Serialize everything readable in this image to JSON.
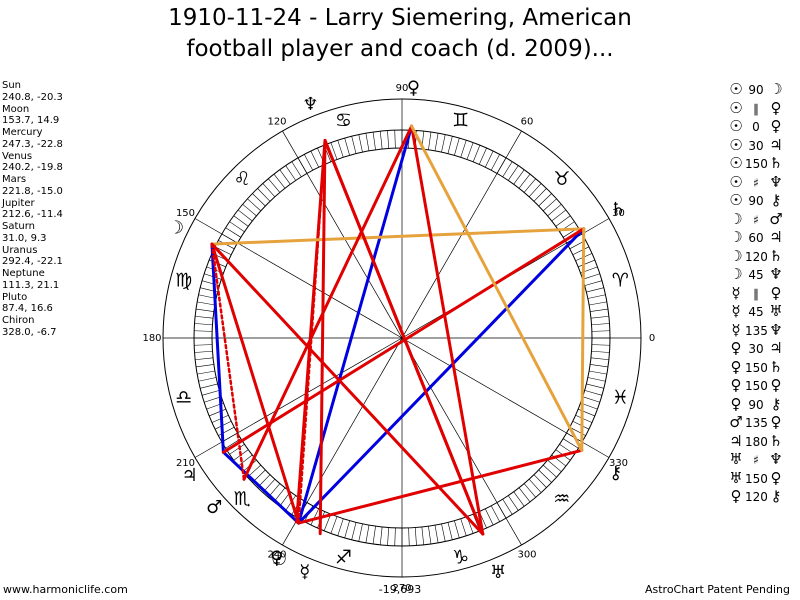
{
  "title_line1": "1910-11-24 - Larry Siemering, American",
  "title_line2": "football player and coach (d. 2009)...",
  "positions": [
    {
      "name": "Sun",
      "value": "240.8, -20.3"
    },
    {
      "name": "Moon",
      "value": "153.7, 14.9"
    },
    {
      "name": "Mercury",
      "value": "247.3, -22.8"
    },
    {
      "name": "Venus",
      "value": "240.2, -19.8"
    },
    {
      "name": "Mars",
      "value": "221.8, -15.0"
    },
    {
      "name": "Jupiter",
      "value": "212.6, -11.4"
    },
    {
      "name": "Saturn",
      "value": "31.0, 9.3"
    },
    {
      "name": "Uranus",
      "value": "292.4, -22.1"
    },
    {
      "name": "Neptune",
      "value": "111.3, 21.1"
    },
    {
      "name": "Pluto",
      "value": "87.4, 16.6"
    },
    {
      "name": "Chiron",
      "value": "328.0, -6.7"
    }
  ],
  "aspects": [
    {
      "p1": "☉",
      "aspect": "90",
      "p2": "☽"
    },
    {
      "p1": "☉",
      "aspect": "∥",
      "p2": "♀"
    },
    {
      "p1": "☉",
      "aspect": "0",
      "p2": "♀"
    },
    {
      "p1": "☉",
      "aspect": "30",
      "p2": "♃"
    },
    {
      "p1": "☉",
      "aspect": "150",
      "p2": "♄"
    },
    {
      "p1": "☉",
      "aspect": "♯",
      "p2": "♆"
    },
    {
      "p1": "☉",
      "aspect": "90",
      "p2": "⚷"
    },
    {
      "p1": "☽",
      "aspect": "♯",
      "p2": "♂"
    },
    {
      "p1": "☽",
      "aspect": "60",
      "p2": "♃"
    },
    {
      "p1": "☽",
      "aspect": "120",
      "p2": "♄"
    },
    {
      "p1": "☽",
      "aspect": "45",
      "p2": "♆"
    },
    {
      "p1": "☿",
      "aspect": "∥",
      "p2": "♀"
    },
    {
      "p1": "☿",
      "aspect": "45",
      "p2": "♅"
    },
    {
      "p1": "☿",
      "aspect": "135",
      "p2": "♆"
    },
    {
      "p1": "♀",
      "aspect": "30",
      "p2": "♃"
    },
    {
      "p1": "♀",
      "aspect": "150",
      "p2": "♄"
    },
    {
      "p1": "♀",
      "aspect": "150",
      "p2": "♀"
    },
    {
      "p1": "♀",
      "aspect": "90",
      "p2": "⚷"
    },
    {
      "p1": "♂",
      "aspect": "135",
      "p2": "♀"
    },
    {
      "p1": "♃",
      "aspect": "180",
      "p2": "♄"
    },
    {
      "p1": "♅",
      "aspect": "♯",
      "p2": "♆"
    },
    {
      "p1": "♅",
      "aspect": "150",
      "p2": "♀"
    },
    {
      "p1": "♀",
      "aspect": "120",
      "p2": "⚷"
    }
  ],
  "degree_labels": [
    "0",
    "30",
    "60",
    "90",
    "120",
    "150",
    "180",
    "210",
    "240",
    "270",
    "300",
    "330"
  ],
  "zodiac_signs": [
    {
      "name": "aries",
      "glyph": "♈"
    },
    {
      "name": "taurus",
      "glyph": "♉"
    },
    {
      "name": "gemini",
      "glyph": "♊"
    },
    {
      "name": "cancer",
      "glyph": "♋"
    },
    {
      "name": "leo",
      "glyph": "♌"
    },
    {
      "name": "virgo",
      "glyph": "♍"
    },
    {
      "name": "libra",
      "glyph": "♎"
    },
    {
      "name": "scorpio",
      "glyph": "♏"
    },
    {
      "name": "sagittarius",
      "glyph": "♐"
    },
    {
      "name": "capricorn",
      "glyph": "♑"
    },
    {
      "name": "aquarius",
      "glyph": "♒"
    },
    {
      "name": "pisces",
      "glyph": "♓"
    }
  ],
  "planets": [
    {
      "name": "sun",
      "glyph": "☉",
      "lon": 240.8
    },
    {
      "name": "moon",
      "glyph": "☽",
      "lon": 153.7
    },
    {
      "name": "mercury",
      "glyph": "☿",
      "lon": 247.3
    },
    {
      "name": "venus",
      "glyph": "♀",
      "lon": 240.2
    },
    {
      "name": "mars",
      "glyph": "♂",
      "lon": 221.8
    },
    {
      "name": "jupiter",
      "glyph": "♃",
      "lon": 212.6
    },
    {
      "name": "saturn",
      "glyph": "♄",
      "lon": 31.0
    },
    {
      "name": "uranus",
      "glyph": "♅",
      "lon": 292.4
    },
    {
      "name": "neptune",
      "glyph": "♆",
      "lon": 111.3
    },
    {
      "name": "pluto",
      "glyph": "♀",
      "lon": 87.4
    },
    {
      "name": "chiron",
      "glyph": "⚷",
      "lon": 328.0
    }
  ],
  "aspect_lines": [
    {
      "from": 240.8,
      "to": 153.7,
      "color": "#e00000",
      "style": "solid"
    },
    {
      "from": 240.8,
      "to": 212.6,
      "color": "#0000e0",
      "style": "solid"
    },
    {
      "from": 240.8,
      "to": 31.0,
      "color": "#0000e0",
      "style": "solid"
    },
    {
      "from": 240.8,
      "to": 87.4,
      "color": "#0000e0",
      "style": "solid"
    },
    {
      "from": 240.8,
      "to": 328.0,
      "color": "#e00000",
      "style": "solid"
    },
    {
      "from": 240.8,
      "to": 111.3,
      "color": "#e00000",
      "style": "dotted"
    },
    {
      "from": 240.2,
      "to": 111.3,
      "color": "#e00000",
      "style": "solid"
    },
    {
      "from": 153.7,
      "to": 212.6,
      "color": "#0000e0",
      "style": "solid"
    },
    {
      "from": 153.7,
      "to": 31.0,
      "color": "#e6a33d",
      "style": "solid"
    },
    {
      "from": 153.7,
      "to": 292.4,
      "color": "#e00000",
      "style": "solid"
    },
    {
      "from": 153.7,
      "to": 221.8,
      "color": "#e00000",
      "style": "dotted"
    },
    {
      "from": 212.6,
      "to": 31.0,
      "color": "#e00000",
      "style": "solid"
    },
    {
      "from": 221.8,
      "to": 87.4,
      "color": "#e00000",
      "style": "solid"
    },
    {
      "from": 247.3,
      "to": 111.3,
      "color": "#e00000",
      "style": "solid"
    },
    {
      "from": 292.4,
      "to": 111.3,
      "color": "#e00000",
      "style": "solid"
    },
    {
      "from": 292.4,
      "to": 87.4,
      "color": "#e00000",
      "style": "solid"
    },
    {
      "from": 87.4,
      "to": 328.0,
      "color": "#e6a33d",
      "style": "solid"
    },
    {
      "from": 111.3,
      "to": 292.4,
      "color": "#e00000",
      "style": "solid"
    },
    {
      "from": 31.0,
      "to": 328.0,
      "color": "#e6a33d",
      "style": "solid"
    }
  ],
  "footer_left": "www.harmoniclife.com",
  "footer_center": "-19,693",
  "footer_right": "AstroChart Patent Pending"
}
